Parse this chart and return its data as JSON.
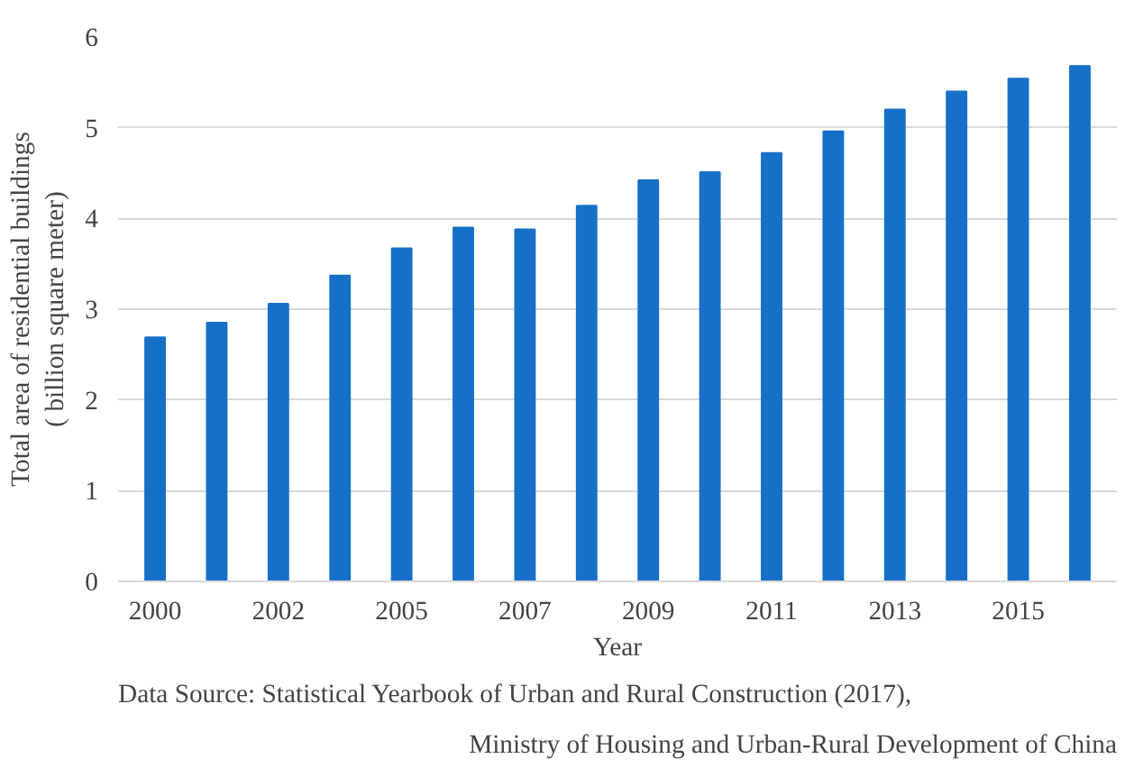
{
  "chart_data": {
    "type": "bar",
    "xlabel": "Year",
    "ylabel": "Total area of residential buildings\n( billion square meter)",
    "categories": [
      "2000",
      null,
      "2002",
      null,
      "2005",
      null,
      "2007",
      null,
      "2009",
      null,
      "2011",
      null,
      "2013",
      null,
      "2015",
      null
    ],
    "values": [
      2.69,
      2.85,
      3.06,
      3.37,
      3.67,
      3.9,
      3.88,
      4.14,
      4.42,
      4.51,
      4.72,
      4.96,
      5.2,
      5.4,
      5.54,
      5.68
    ],
    "color": "#1770c8",
    "ylim": [
      0,
      6
    ],
    "yticks": [
      0,
      1,
      2,
      3,
      4,
      5,
      6
    ],
    "grid": "y",
    "annotations": [
      "Data Source: Statistical Yearbook of Urban and Rural Construction (2017),",
      "Ministry of Housing and Urban-Rural Development of China"
    ]
  }
}
